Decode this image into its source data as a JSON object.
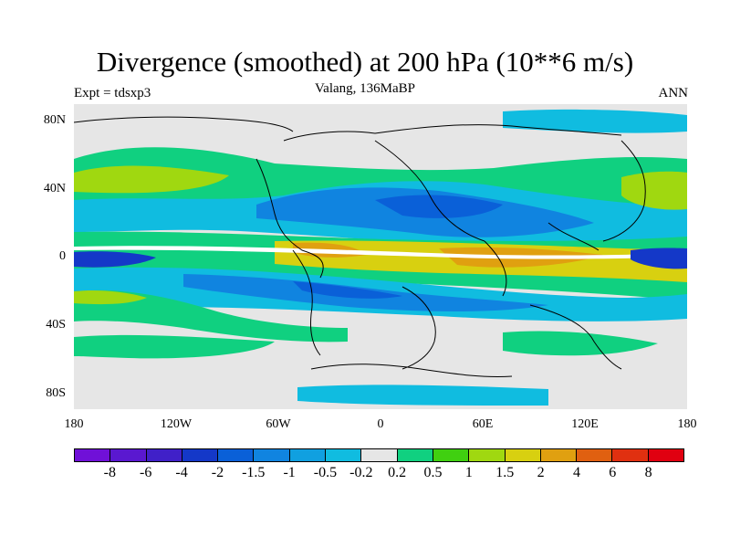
{
  "title": "Divergence (smoothed) at 200 hPa (10**6 m/s)",
  "subtitle": "Valang, 136MaBP",
  "left_label": "Expt = tdsxp3",
  "right_label": "ANN",
  "lat_labels": [
    "80N",
    "40N",
    "0",
    "40S",
    "80S"
  ],
  "lon_labels": [
    "180",
    "120W",
    "60W",
    "0",
    "60E",
    "120E",
    "180"
  ],
  "colorbar": {
    "labels": [
      "-8",
      "-6",
      "-4",
      "-2",
      "-1.5",
      "-1",
      "-0.5",
      "-0.2",
      "0.2",
      "0.5",
      "1",
      "1.5",
      "2",
      "4",
      "6",
      "8"
    ],
    "colors": [
      "#7010d8",
      "#5a18d0",
      "#4020c8",
      "#1438c8",
      "#0a60d8",
      "#1084e0",
      "#10a0e0",
      "#10bce0",
      "#e6e6e6",
      "#10d080",
      "#40d010",
      "#a0d810",
      "#d8d010",
      "#e0a010",
      "#e06010",
      "#e03010",
      "#e00010"
    ]
  },
  "colors": {
    "neutral": "#e6e6e6",
    "coast": "#000000"
  }
}
